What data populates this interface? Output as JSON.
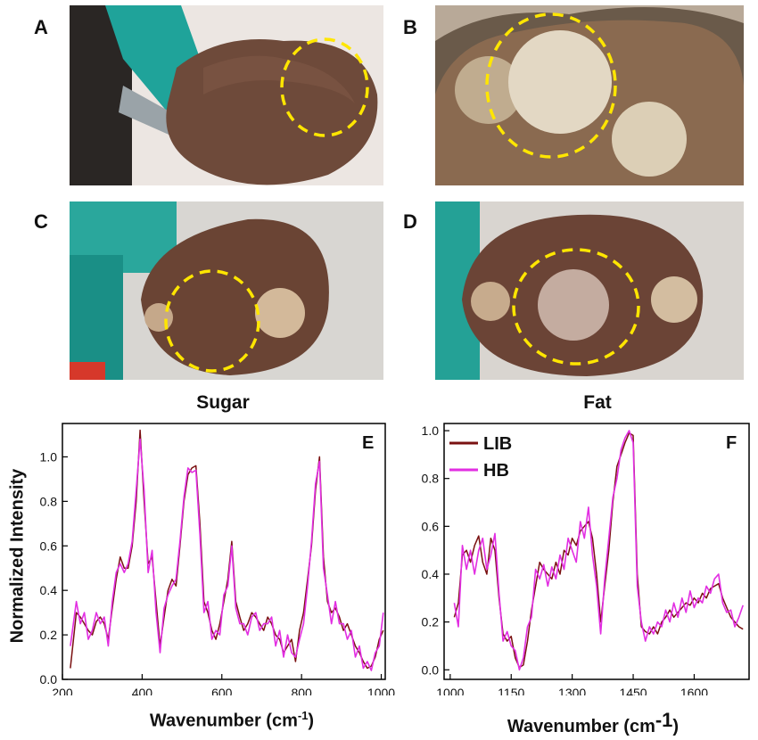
{
  "panels": {
    "a": "A",
    "b": "B",
    "c": "C",
    "d": "D",
    "e": "E",
    "f": "F"
  },
  "titles": {
    "left": "Sugar",
    "right": "Fat"
  },
  "axes": {
    "ylabel": "Normalized Intensity",
    "xlabel_main": "Wavenumber (cm",
    "xlabel_sup": "-1",
    "xlabel_close": ")"
  },
  "colors": {
    "LIB": "#7a1111",
    "HB": "#e22ee2",
    "highlight": "#ffe600"
  },
  "chart_data": [
    {
      "type": "line",
      "panel": "E",
      "title": "Sugar",
      "xlabel": "Wavenumber (cm-1)",
      "ylabel": "Normalized Intensity",
      "xlim": [
        200,
        1010
      ],
      "ylim": [
        0.0,
        1.15
      ],
      "xticks": [
        200,
        400,
        600,
        800,
        1000
      ],
      "yticks": [
        0.0,
        0.2,
        0.4,
        0.6,
        0.8,
        1.0
      ],
      "series": [
        {
          "name": "LIB",
          "color": "#7a1111",
          "x": [
            220,
            235,
            245,
            255,
            265,
            275,
            285,
            295,
            305,
            315,
            325,
            335,
            345,
            355,
            365,
            375,
            385,
            395,
            405,
            415,
            425,
            435,
            445,
            455,
            465,
            475,
            485,
            495,
            505,
            515,
            525,
            535,
            545,
            555,
            565,
            575,
            585,
            595,
            605,
            615,
            625,
            635,
            645,
            655,
            665,
            675,
            685,
            695,
            705,
            715,
            725,
            735,
            745,
            755,
            765,
            775,
            785,
            795,
            805,
            815,
            825,
            835,
            845,
            855,
            865,
            875,
            885,
            895,
            905,
            915,
            925,
            935,
            945,
            955,
            965,
            975,
            985,
            995,
            1005
          ],
          "y": [
            0.05,
            0.3,
            0.28,
            0.25,
            0.22,
            0.2,
            0.26,
            0.28,
            0.25,
            0.18,
            0.32,
            0.45,
            0.55,
            0.5,
            0.5,
            0.6,
            0.8,
            1.12,
            0.8,
            0.52,
            0.55,
            0.35,
            0.15,
            0.28,
            0.4,
            0.45,
            0.42,
            0.6,
            0.8,
            0.92,
            0.95,
            0.96,
            0.7,
            0.35,
            0.3,
            0.22,
            0.18,
            0.25,
            0.35,
            0.45,
            0.62,
            0.35,
            0.28,
            0.22,
            0.25,
            0.3,
            0.28,
            0.25,
            0.22,
            0.28,
            0.25,
            0.2,
            0.18,
            0.12,
            0.15,
            0.18,
            0.08,
            0.22,
            0.3,
            0.45,
            0.6,
            0.85,
            1.0,
            0.55,
            0.35,
            0.3,
            0.32,
            0.28,
            0.22,
            0.25,
            0.2,
            0.15,
            0.12,
            0.08,
            0.05,
            0.06,
            0.1,
            0.18,
            0.22
          ]
        },
        {
          "name": "HB",
          "color": "#e22ee2",
          "x": [
            220,
            235,
            245,
            255,
            265,
            275,
            285,
            295,
            305,
            315,
            325,
            335,
            345,
            355,
            365,
            375,
            385,
            395,
            405,
            415,
            425,
            435,
            445,
            455,
            465,
            475,
            485,
            495,
            505,
            515,
            525,
            535,
            545,
            555,
            565,
            575,
            585,
            595,
            605,
            615,
            625,
            635,
            645,
            655,
            665,
            675,
            685,
            695,
            705,
            715,
            725,
            735,
            745,
            755,
            765,
            775,
            785,
            795,
            805,
            815,
            825,
            835,
            845,
            855,
            865,
            875,
            885,
            895,
            905,
            915,
            925,
            935,
            945,
            955,
            965,
            975,
            985,
            995,
            1005
          ],
          "y": [
            0.15,
            0.35,
            0.25,
            0.3,
            0.18,
            0.22,
            0.3,
            0.25,
            0.28,
            0.15,
            0.35,
            0.48,
            0.52,
            0.48,
            0.52,
            0.62,
            0.85,
            1.08,
            0.85,
            0.48,
            0.58,
            0.3,
            0.12,
            0.32,
            0.38,
            0.42,
            0.45,
            0.62,
            0.82,
            0.95,
            0.93,
            0.94,
            0.65,
            0.3,
            0.35,
            0.18,
            0.22,
            0.2,
            0.38,
            0.42,
            0.6,
            0.32,
            0.25,
            0.25,
            0.2,
            0.28,
            0.3,
            0.22,
            0.25,
            0.25,
            0.28,
            0.15,
            0.22,
            0.1,
            0.2,
            0.12,
            0.1,
            0.18,
            0.25,
            0.42,
            0.62,
            0.88,
            0.98,
            0.5,
            0.38,
            0.25,
            0.35,
            0.25,
            0.25,
            0.18,
            0.22,
            0.1,
            0.15,
            0.05,
            0.08,
            0.04,
            0.12,
            0.15,
            0.3
          ]
        }
      ]
    },
    {
      "type": "line",
      "panel": "F",
      "title": "Fat",
      "xlabel": "Wavenumber (cm-1)",
      "xlim": [
        985,
        1735
      ],
      "ylim": [
        -0.04,
        1.03
      ],
      "xticks": [
        1000,
        1150,
        1300,
        1450,
        1600
      ],
      "yticks": [
        0.0,
        0.2,
        0.4,
        0.6,
        0.8,
        1.0
      ],
      "legend": {
        "placement": "top-left",
        "entries": [
          "LIB",
          "HB"
        ]
      },
      "series": [
        {
          "name": "LIB",
          "color": "#7a1111",
          "x": [
            1010,
            1020,
            1030,
            1040,
            1050,
            1060,
            1070,
            1080,
            1090,
            1100,
            1110,
            1120,
            1130,
            1140,
            1150,
            1160,
            1170,
            1180,
            1190,
            1200,
            1210,
            1220,
            1230,
            1240,
            1250,
            1260,
            1270,
            1280,
            1290,
            1300,
            1310,
            1320,
            1330,
            1340,
            1350,
            1360,
            1370,
            1380,
            1390,
            1400,
            1410,
            1420,
            1430,
            1440,
            1450,
            1460,
            1470,
            1480,
            1490,
            1500,
            1510,
            1520,
            1530,
            1540,
            1550,
            1560,
            1570,
            1580,
            1590,
            1600,
            1610,
            1620,
            1630,
            1640,
            1650,
            1660,
            1670,
            1680,
            1690,
            1700,
            1710,
            1720
          ],
          "y": [
            0.22,
            0.28,
            0.48,
            0.5,
            0.45,
            0.52,
            0.56,
            0.45,
            0.4,
            0.55,
            0.5,
            0.3,
            0.15,
            0.12,
            0.14,
            0.05,
            0.01,
            0.02,
            0.12,
            0.25,
            0.35,
            0.45,
            0.42,
            0.4,
            0.38,
            0.45,
            0.4,
            0.5,
            0.48,
            0.55,
            0.52,
            0.58,
            0.6,
            0.62,
            0.55,
            0.4,
            0.2,
            0.35,
            0.5,
            0.7,
            0.85,
            0.9,
            0.95,
            0.99,
            0.98,
            0.4,
            0.18,
            0.16,
            0.15,
            0.18,
            0.15,
            0.2,
            0.22,
            0.25,
            0.22,
            0.24,
            0.26,
            0.28,
            0.27,
            0.3,
            0.28,
            0.32,
            0.3,
            0.34,
            0.35,
            0.36,
            0.3,
            0.26,
            0.22,
            0.2,
            0.18,
            0.17
          ]
        },
        {
          "name": "HB",
          "color": "#e22ee2",
          "x": [
            1010,
            1020,
            1030,
            1040,
            1050,
            1060,
            1070,
            1080,
            1090,
            1100,
            1110,
            1120,
            1130,
            1140,
            1150,
            1160,
            1170,
            1180,
            1190,
            1200,
            1210,
            1220,
            1230,
            1240,
            1250,
            1260,
            1270,
            1280,
            1290,
            1300,
            1310,
            1320,
            1330,
            1340,
            1350,
            1360,
            1370,
            1380,
            1390,
            1400,
            1410,
            1420,
            1430,
            1440,
            1450,
            1460,
            1470,
            1480,
            1490,
            1500,
            1510,
            1520,
            1530,
            1540,
            1550,
            1560,
            1570,
            1580,
            1590,
            1600,
            1610,
            1620,
            1630,
            1640,
            1650,
            1660,
            1670,
            1680,
            1690,
            1700,
            1710,
            1720
          ],
          "y": [
            0.28,
            0.18,
            0.52,
            0.42,
            0.5,
            0.4,
            0.5,
            0.55,
            0.42,
            0.48,
            0.57,
            0.32,
            0.12,
            0.16,
            0.1,
            0.08,
            0.0,
            0.05,
            0.18,
            0.22,
            0.42,
            0.38,
            0.44,
            0.35,
            0.43,
            0.38,
            0.48,
            0.42,
            0.55,
            0.5,
            0.45,
            0.62,
            0.55,
            0.68,
            0.48,
            0.35,
            0.15,
            0.38,
            0.55,
            0.72,
            0.8,
            0.92,
            0.97,
            1.0,
            0.95,
            0.35,
            0.2,
            0.12,
            0.18,
            0.15,
            0.2,
            0.18,
            0.25,
            0.2,
            0.28,
            0.22,
            0.3,
            0.24,
            0.33,
            0.26,
            0.3,
            0.28,
            0.35,
            0.32,
            0.38,
            0.4,
            0.28,
            0.24,
            0.25,
            0.18,
            0.22,
            0.27
          ]
        }
      ]
    }
  ]
}
